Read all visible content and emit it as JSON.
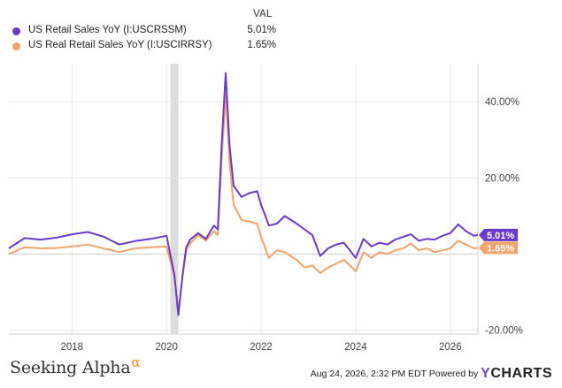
{
  "legend": {
    "header": "VAL",
    "items": [
      {
        "name": "US Retail Sales YoY (I:USCRSSM)",
        "value": "5.01%",
        "color": "#6a3bc9"
      },
      {
        "name": "US Real Retail Sales YoY (I:USCIRRSY)",
        "value": "1.65%",
        "color": "#f5a36b"
      }
    ]
  },
  "footer": {
    "brand_left": "Seeking Alpha",
    "brand_left_mark": "α",
    "timestamp": "Aug 24, 2026, 2:32 PM EDT  Powered by",
    "brand_right_mark": "Y",
    "brand_right": "CHARTS"
  },
  "chart_data": {
    "type": "line",
    "xlabel": "",
    "ylabel": "",
    "x_ticks": [
      "2018",
      "2020",
      "2022",
      "2024",
      "2026"
    ],
    "y_ticks": [
      "40.00%",
      "20.00%",
      "-20.00%"
    ],
    "xlim": [
      "2016-09",
      "2026-08"
    ],
    "ylim": [
      -21,
      50
    ],
    "recession_band": [
      "2020-02",
      "2020-04"
    ],
    "grid": true,
    "end_labels": [
      "5.01%",
      "1.65%"
    ],
    "series": [
      {
        "name": "US Retail Sales YoY (I:USCRSSM)",
        "color": "#6a3bc9",
        "points": [
          [
            "2016-09",
            1.5
          ],
          [
            "2017-01",
            4.2
          ],
          [
            "2017-05",
            3.8
          ],
          [
            "2017-09",
            4.3
          ],
          [
            "2018-01",
            5.2
          ],
          [
            "2018-05",
            5.8
          ],
          [
            "2018-09",
            4.6
          ],
          [
            "2019-01",
            2.5
          ],
          [
            "2019-05",
            3.4
          ],
          [
            "2019-09",
            4.0
          ],
          [
            "2020-01",
            4.8
          ],
          [
            "2020-03",
            -5.5
          ],
          [
            "2020-04",
            -16.0
          ],
          [
            "2020-05",
            -6.0
          ],
          [
            "2020-06",
            1.8
          ],
          [
            "2020-07",
            3.8
          ],
          [
            "2020-09",
            5.5
          ],
          [
            "2020-11",
            4.0
          ],
          [
            "2021-01",
            7.5
          ],
          [
            "2021-02",
            6.5
          ],
          [
            "2021-03",
            29.0
          ],
          [
            "2021-04",
            47.5
          ],
          [
            "2021-05",
            28.5
          ],
          [
            "2021-06",
            18.0
          ],
          [
            "2021-08",
            15.0
          ],
          [
            "2021-10",
            16.0
          ],
          [
            "2021-12",
            16.5
          ],
          [
            "2022-01",
            13.0
          ],
          [
            "2022-03",
            7.5
          ],
          [
            "2022-05",
            8.0
          ],
          [
            "2022-07",
            10.0
          ],
          [
            "2022-10",
            8.0
          ],
          [
            "2022-12",
            6.5
          ],
          [
            "2023-02",
            5.0
          ],
          [
            "2023-04",
            -0.5
          ],
          [
            "2023-06",
            1.5
          ],
          [
            "2023-08",
            2.5
          ],
          [
            "2023-10",
            3.0
          ],
          [
            "2024-01",
            -1.0
          ],
          [
            "2024-03",
            4.0
          ],
          [
            "2024-05",
            2.0
          ],
          [
            "2024-07",
            3.0
          ],
          [
            "2024-09",
            2.5
          ],
          [
            "2024-11",
            3.8
          ],
          [
            "2025-01",
            4.5
          ],
          [
            "2025-03",
            5.2
          ],
          [
            "2025-05",
            3.5
          ],
          [
            "2025-07",
            4.0
          ],
          [
            "2025-09",
            3.8
          ],
          [
            "2025-11",
            4.8
          ],
          [
            "2026-01",
            5.5
          ],
          [
            "2026-03",
            7.8
          ],
          [
            "2026-05",
            6.0
          ],
          [
            "2026-07",
            4.8
          ],
          [
            "2026-08",
            5.01
          ]
        ]
      },
      {
        "name": "US Real Retail Sales YoY (I:USCIRRSY)",
        "color": "#f5a36b",
        "points": [
          [
            "2016-09",
            0.0
          ],
          [
            "2017-01",
            1.8
          ],
          [
            "2017-05",
            1.5
          ],
          [
            "2017-09",
            1.6
          ],
          [
            "2018-01",
            2.0
          ],
          [
            "2018-05",
            2.5
          ],
          [
            "2018-09",
            1.5
          ],
          [
            "2019-01",
            0.5
          ],
          [
            "2019-05",
            1.5
          ],
          [
            "2019-09",
            1.8
          ],
          [
            "2020-01",
            2.0
          ],
          [
            "2020-03",
            -6.0
          ],
          [
            "2020-04",
            -15.0
          ],
          [
            "2020-05",
            -6.5
          ],
          [
            "2020-06",
            1.0
          ],
          [
            "2020-07",
            2.8
          ],
          [
            "2020-09",
            5.0
          ],
          [
            "2020-11",
            3.5
          ],
          [
            "2021-01",
            6.0
          ],
          [
            "2021-02",
            5.0
          ],
          [
            "2021-03",
            25.0
          ],
          [
            "2021-04",
            42.0
          ],
          [
            "2021-05",
            24.0
          ],
          [
            "2021-06",
            13.0
          ],
          [
            "2021-08",
            9.0
          ],
          [
            "2021-10",
            8.5
          ],
          [
            "2021-12",
            8.0
          ],
          [
            "2022-01",
            4.5
          ],
          [
            "2022-03",
            -1.0
          ],
          [
            "2022-05",
            1.0
          ],
          [
            "2022-07",
            0.5
          ],
          [
            "2022-10",
            -1.5
          ],
          [
            "2022-12",
            -3.5
          ],
          [
            "2023-02",
            -3.0
          ],
          [
            "2023-04",
            -5.0
          ],
          [
            "2023-06",
            -3.5
          ],
          [
            "2023-08",
            -2.5
          ],
          [
            "2023-10",
            -1.5
          ],
          [
            "2024-01",
            -4.5
          ],
          [
            "2024-03",
            0.5
          ],
          [
            "2024-05",
            -1.0
          ],
          [
            "2024-07",
            0.5
          ],
          [
            "2024-09",
            0.0
          ],
          [
            "2024-11",
            1.0
          ],
          [
            "2025-01",
            1.5
          ],
          [
            "2025-03",
            2.8
          ],
          [
            "2025-05",
            1.0
          ],
          [
            "2025-07",
            1.5
          ],
          [
            "2025-09",
            0.5
          ],
          [
            "2025-11",
            1.0
          ],
          [
            "2026-01",
            1.5
          ],
          [
            "2026-03",
            3.5
          ],
          [
            "2026-05",
            2.5
          ],
          [
            "2026-07",
            1.5
          ],
          [
            "2026-08",
            1.65
          ]
        ]
      }
    ]
  }
}
